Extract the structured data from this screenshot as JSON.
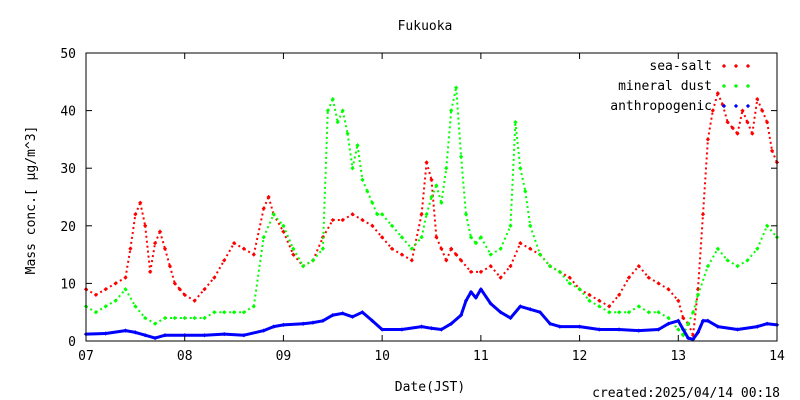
{
  "chart_data": {
    "type": "scatter",
    "title": "Fukuoka",
    "xlabel": "Date(JST)",
    "ylabel": "Mass conc.[ μg/m^3]",
    "xlim": [
      7,
      14
    ],
    "ylim": [
      0,
      50
    ],
    "x_ticks": [
      "07",
      "08",
      "09",
      "10",
      "11",
      "12",
      "13",
      "14"
    ],
    "y_ticks": [
      "0",
      "10",
      "20",
      "30",
      "40",
      "50"
    ],
    "legend_position": "top-right",
    "grid": false,
    "footer_text": "created:2025/04/14 00:18",
    "series": [
      {
        "name": "sea-salt",
        "color": "#ff0000",
        "x": [
          7.0,
          7.1,
          7.2,
          7.3,
          7.4,
          7.45,
          7.5,
          7.55,
          7.6,
          7.65,
          7.7,
          7.75,
          7.8,
          7.85,
          7.9,
          7.95,
          8.0,
          8.1,
          8.2,
          8.3,
          8.4,
          8.5,
          8.6,
          8.7,
          8.8,
          8.85,
          8.9,
          9.0,
          9.1,
          9.2,
          9.3,
          9.4,
          9.5,
          9.6,
          9.7,
          9.8,
          9.9,
          10.0,
          10.1,
          10.2,
          10.3,
          10.4,
          10.45,
          10.5,
          10.55,
          10.6,
          10.65,
          10.7,
          10.75,
          10.8,
          10.9,
          11.0,
          11.1,
          11.2,
          11.3,
          11.4,
          11.5,
          11.6,
          11.7,
          11.8,
          11.9,
          12.0,
          12.1,
          12.2,
          12.3,
          12.4,
          12.5,
          12.6,
          12.7,
          12.8,
          12.9,
          13.0,
          13.05,
          13.1,
          13.15,
          13.2,
          13.25,
          13.3,
          13.35,
          13.4,
          13.45,
          13.5,
          13.55,
          13.6,
          13.65,
          13.7,
          13.75,
          13.8,
          13.85,
          13.9,
          13.95,
          14.0
        ],
        "values": [
          9,
          8,
          9,
          10,
          11,
          16,
          22,
          24,
          20,
          12,
          17,
          19,
          16,
          13,
          10,
          9,
          8,
          7,
          9,
          11,
          14,
          17,
          16,
          15,
          23,
          25,
          22,
          19,
          15,
          13,
          14,
          18,
          21,
          21,
          22,
          21,
          20,
          18,
          16,
          15,
          14,
          22,
          31,
          28,
          18,
          16,
          14,
          16,
          15,
          14,
          12,
          12,
          13,
          11,
          13,
          17,
          16,
          15,
          13,
          12,
          11,
          9,
          8,
          7,
          6,
          8,
          11,
          13,
          11,
          10,
          9,
          7,
          4,
          3,
          1,
          9,
          22,
          35,
          40,
          43,
          41,
          38,
          37,
          36,
          40,
          38,
          36,
          42,
          40,
          38,
          33,
          31
        ]
      },
      {
        "name": "mineral dust",
        "color": "#00ff00",
        "x": [
          7.0,
          7.1,
          7.2,
          7.3,
          7.4,
          7.5,
          7.6,
          7.7,
          7.8,
          7.9,
          8.0,
          8.1,
          8.2,
          8.3,
          8.4,
          8.5,
          8.6,
          8.7,
          8.8,
          8.9,
          9.0,
          9.1,
          9.2,
          9.3,
          9.4,
          9.45,
          9.5,
          9.55,
          9.6,
          9.65,
          9.7,
          9.75,
          9.8,
          9.85,
          9.9,
          9.95,
          10.0,
          10.1,
          10.2,
          10.3,
          10.4,
          10.45,
          10.5,
          10.55,
          10.6,
          10.65,
          10.7,
          10.75,
          10.8,
          10.85,
          10.9,
          10.95,
          11.0,
          11.1,
          11.2,
          11.3,
          11.35,
          11.4,
          11.45,
          11.5,
          11.6,
          11.7,
          11.8,
          11.9,
          12.0,
          12.1,
          12.2,
          12.3,
          12.4,
          12.5,
          12.6,
          12.7,
          12.8,
          12.9,
          13.0,
          13.05,
          13.1,
          13.15,
          13.2,
          13.3,
          13.4,
          13.5,
          13.6,
          13.7,
          13.8,
          13.9,
          14.0
        ],
        "values": [
          6,
          5,
          6,
          7,
          9,
          6,
          4,
          3,
          4,
          4,
          4,
          4,
          4,
          5,
          5,
          5,
          5,
          6,
          18,
          22,
          20,
          16,
          13,
          14,
          16,
          40,
          42,
          38,
          40,
          36,
          30,
          34,
          28,
          26,
          24,
          22,
          22,
          20,
          18,
          16,
          18,
          22,
          25,
          27,
          24,
          30,
          40,
          44,
          32,
          22,
          18,
          17,
          18,
          15,
          16,
          20,
          38,
          30,
          26,
          20,
          15,
          13,
          12,
          10,
          9,
          7,
          6,
          5,
          5,
          5,
          6,
          5,
          5,
          4,
          2,
          1,
          3,
          5,
          8,
          13,
          16,
          14,
          13,
          14,
          16,
          20,
          18
        ]
      },
      {
        "name": "anthropogenic",
        "color": "#0000ff",
        "x": [
          7.0,
          7.2,
          7.4,
          7.5,
          7.6,
          7.7,
          7.8,
          8.0,
          8.2,
          8.4,
          8.6,
          8.8,
          8.9,
          9.0,
          9.2,
          9.3,
          9.4,
          9.5,
          9.6,
          9.7,
          9.8,
          9.9,
          10.0,
          10.2,
          10.4,
          10.5,
          10.6,
          10.7,
          10.8,
          10.85,
          10.9,
          10.95,
          11.0,
          11.1,
          11.2,
          11.3,
          11.4,
          11.5,
          11.6,
          11.7,
          11.8,
          12.0,
          12.2,
          12.4,
          12.6,
          12.8,
          12.9,
          13.0,
          13.05,
          13.1,
          13.15,
          13.2,
          13.25,
          13.3,
          13.4,
          13.6,
          13.8,
          13.9,
          14.0
        ],
        "values": [
          1.2,
          1.3,
          1.8,
          1.5,
          1.0,
          0.5,
          1.0,
          1.0,
          1.0,
          1.2,
          1.0,
          1.8,
          2.5,
          2.8,
          3.0,
          3.2,
          3.5,
          4.5,
          4.8,
          4.2,
          5.0,
          3.5,
          2.0,
          2.0,
          2.5,
          2.2,
          2.0,
          3.0,
          4.5,
          7.0,
          8.5,
          7.5,
          9.0,
          6.5,
          5.0,
          4.0,
          6.0,
          5.5,
          5.0,
          3.0,
          2.5,
          2.5,
          2.0,
          2.0,
          1.8,
          2.0,
          3.0,
          3.5,
          2.0,
          0.5,
          0.3,
          1.5,
          3.5,
          3.5,
          2.5,
          2.0,
          2.5,
          3.0,
          2.8
        ]
      }
    ]
  }
}
